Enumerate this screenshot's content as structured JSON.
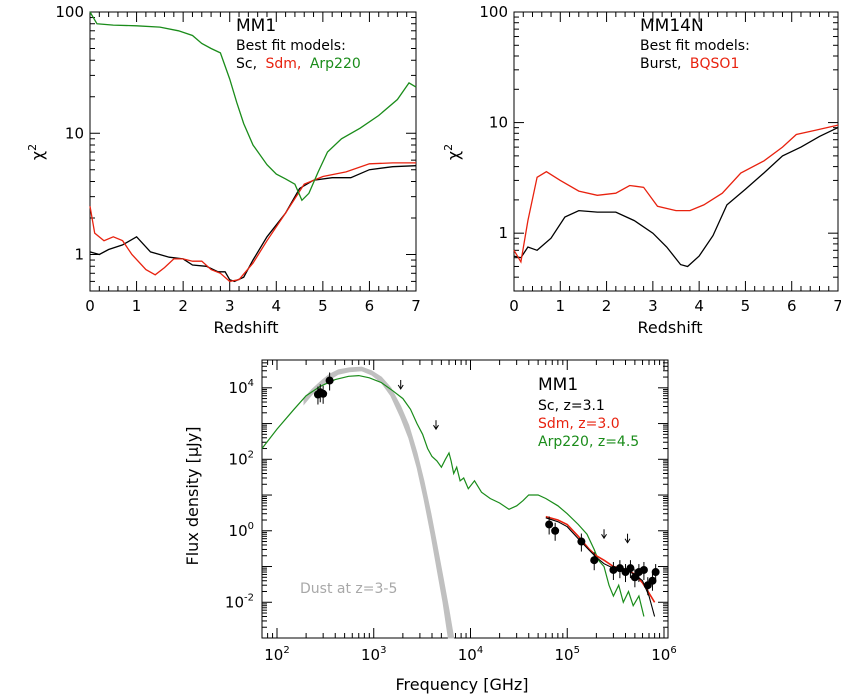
{
  "colors": {
    "black": "#000000",
    "red": "#e8220f",
    "green": "#1a8c1a",
    "gray": "#c0c0c0"
  },
  "chart_data": [
    {
      "type": "line",
      "ylog": true,
      "xlabel": "Redshift",
      "ylabel": "χ",
      "ylabel_sup": "2",
      "xlim": [
        0,
        7
      ],
      "ylim": [
        0.5,
        100
      ],
      "xticks": [
        "0",
        "1",
        "2",
        "3",
        "4",
        "5",
        "6",
        "7"
      ],
      "yticks": [
        {
          "v": 1,
          "t": "1"
        },
        {
          "v": 10,
          "t": "10"
        },
        {
          "v": 100,
          "t": "100"
        }
      ],
      "annotation": {
        "name": "MM1",
        "heading": "Best fit models:",
        "models": [
          {
            "text": "Sc,",
            "color": "black"
          },
          {
            "text": "Sdm,",
            "color": "red"
          },
          {
            "text": "Arp220",
            "color": "green"
          }
        ]
      },
      "series": [
        {
          "color": "black",
          "points": [
            [
              0,
              1.05
            ],
            [
              0.2,
              1.0
            ],
            [
              0.4,
              1.1
            ],
            [
              0.7,
              1.2
            ],
            [
              1.0,
              1.4
            ],
            [
              1.3,
              1.05
            ],
            [
              1.7,
              0.95
            ],
            [
              2.0,
              0.92
            ],
            [
              2.2,
              0.82
            ],
            [
              2.5,
              0.8
            ],
            [
              2.75,
              0.72
            ],
            [
              2.9,
              0.72
            ],
            [
              3.0,
              0.62
            ],
            [
              3.1,
              0.6
            ],
            [
              3.3,
              0.65
            ],
            [
              3.5,
              0.9
            ],
            [
              3.8,
              1.4
            ],
            [
              4.2,
              2.2
            ],
            [
              4.5,
              3.5
            ],
            [
              4.8,
              4.1
            ],
            [
              5.2,
              4.3
            ],
            [
              5.6,
              4.3
            ],
            [
              6.0,
              5.0
            ],
            [
              6.5,
              5.3
            ],
            [
              7.0,
              5.4
            ]
          ]
        },
        {
          "color": "red",
          "points": [
            [
              0,
              2.5
            ],
            [
              0.1,
              1.5
            ],
            [
              0.3,
              1.3
            ],
            [
              0.5,
              1.4
            ],
            [
              0.7,
              1.3
            ],
            [
              0.9,
              1.0
            ],
            [
              1.2,
              0.75
            ],
            [
              1.4,
              0.68
            ],
            [
              1.6,
              0.78
            ],
            [
              1.8,
              0.92
            ],
            [
              2.0,
              0.92
            ],
            [
              2.2,
              0.88
            ],
            [
              2.4,
              0.88
            ],
            [
              2.6,
              0.75
            ],
            [
              2.8,
              0.7
            ],
            [
              3.0,
              0.6
            ],
            [
              3.2,
              0.62
            ],
            [
              3.5,
              0.85
            ],
            [
              3.8,
              1.3
            ],
            [
              4.2,
              2.2
            ],
            [
              4.6,
              3.8
            ],
            [
              5.0,
              4.4
            ],
            [
              5.5,
              4.8
            ],
            [
              6.0,
              5.6
            ],
            [
              6.5,
              5.7
            ],
            [
              7.0,
              5.7
            ]
          ]
        },
        {
          "color": "green",
          "points": [
            [
              0,
              100
            ],
            [
              0.15,
              80
            ],
            [
              0.5,
              78
            ],
            [
              1.0,
              77
            ],
            [
              1.5,
              75
            ],
            [
              1.9,
              70
            ],
            [
              2.2,
              64
            ],
            [
              2.4,
              55
            ],
            [
              2.6,
              50
            ],
            [
              2.8,
              46
            ],
            [
              3.0,
              28
            ],
            [
              3.15,
              18
            ],
            [
              3.3,
              12
            ],
            [
              3.5,
              8
            ],
            [
              3.8,
              5.5
            ],
            [
              4.0,
              4.6
            ],
            [
              4.2,
              4.2
            ],
            [
              4.4,
              3.8
            ],
            [
              4.55,
              2.8
            ],
            [
              4.7,
              3.2
            ],
            [
              4.9,
              4.8
            ],
            [
              5.1,
              7
            ],
            [
              5.4,
              9
            ],
            [
              5.8,
              11
            ],
            [
              6.2,
              14
            ],
            [
              6.6,
              19
            ],
            [
              6.85,
              26
            ],
            [
              7.0,
              24
            ]
          ]
        }
      ]
    },
    {
      "type": "line",
      "ylog": true,
      "xlabel": "Redshift",
      "ylabel": "χ",
      "ylabel_sup": "2",
      "xlim": [
        0,
        7
      ],
      "ylim": [
        0.3,
        100
      ],
      "xticks": [
        "0",
        "1",
        "2",
        "3",
        "4",
        "5",
        "6",
        "7"
      ],
      "yticks": [
        {
          "v": 1,
          "t": "1"
        },
        {
          "v": 10,
          "t": "10"
        },
        {
          "v": 100,
          "t": "100"
        }
      ],
      "annotation": {
        "name": "MM14N",
        "heading": "Best fit models:",
        "models": [
          {
            "text": "Burst,",
            "color": "black"
          },
          {
            "text": "BQSO1",
            "color": "red"
          }
        ]
      },
      "series": [
        {
          "color": "black",
          "points": [
            [
              0,
              0.62
            ],
            [
              0.15,
              0.6
            ],
            [
              0.3,
              0.75
            ],
            [
              0.5,
              0.7
            ],
            [
              0.8,
              0.9
            ],
            [
              1.1,
              1.4
            ],
            [
              1.4,
              1.6
            ],
            [
              1.8,
              1.55
            ],
            [
              2.2,
              1.55
            ],
            [
              2.6,
              1.3
            ],
            [
              3.0,
              1.0
            ],
            [
              3.3,
              0.75
            ],
            [
              3.6,
              0.52
            ],
            [
              3.75,
              0.5
            ],
            [
              4.0,
              0.62
            ],
            [
              4.3,
              0.95
            ],
            [
              4.6,
              1.8
            ],
            [
              5.0,
              2.5
            ],
            [
              5.4,
              3.5
            ],
            [
              5.8,
              5.0
            ],
            [
              6.2,
              6.0
            ],
            [
              6.6,
              7.5
            ],
            [
              7.0,
              9.0
            ]
          ]
        },
        {
          "color": "red",
          "points": [
            [
              0,
              0.7
            ],
            [
              0.15,
              0.55
            ],
            [
              0.3,
              1.3
            ],
            [
              0.5,
              3.2
            ],
            [
              0.7,
              3.6
            ],
            [
              1.0,
              3.0
            ],
            [
              1.4,
              2.4
            ],
            [
              1.8,
              2.2
            ],
            [
              2.2,
              2.3
            ],
            [
              2.5,
              2.7
            ],
            [
              2.8,
              2.6
            ],
            [
              3.1,
              1.75
            ],
            [
              3.5,
              1.6
            ],
            [
              3.8,
              1.6
            ],
            [
              4.1,
              1.8
            ],
            [
              4.5,
              2.3
            ],
            [
              4.9,
              3.5
            ],
            [
              5.4,
              4.5
            ],
            [
              5.8,
              6.0
            ],
            [
              6.1,
              7.8
            ],
            [
              6.5,
              8.5
            ],
            [
              7.0,
              9.5
            ]
          ]
        }
      ]
    },
    {
      "type": "line",
      "xlog": true,
      "ylog": true,
      "xlabel": "Frequency [GHz]",
      "ylabel": "Flux density [μJy]",
      "xlim": [
        70,
        1100000
      ],
      "ylim": [
        0.001,
        60000
      ],
      "xticks": [
        {
          "e": 2,
          "t": "10",
          "s": "2"
        },
        {
          "e": 3,
          "t": "10",
          "s": "3"
        },
        {
          "e": 4,
          "t": "10",
          "s": "4"
        },
        {
          "e": 5,
          "t": "10",
          "s": "5"
        },
        {
          "e": 6,
          "t": "10",
          "s": "6"
        }
      ],
      "yticks": [
        {
          "e": -2,
          "t": "10",
          "s": "-2"
        },
        {
          "e": 0,
          "t": "10",
          "s": "0"
        },
        {
          "e": 2,
          "t": "10",
          "s": "2"
        },
        {
          "e": 4,
          "t": "10",
          "s": "4"
        }
      ],
      "annotation": {
        "name": "MM1",
        "models": [
          {
            "text": "Sc,   z=3.1",
            "color": "black"
          },
          {
            "text": "Sdm, z=3.0",
            "color": "red"
          },
          {
            "text": "Arp220, z=4.5",
            "color": "green"
          }
        ]
      },
      "dust_label": "Dust at z=3-5",
      "dust_band": [
        [
          190,
          5000
        ],
        [
          230,
          9000
        ],
        [
          290,
          16000
        ],
        [
          350,
          24000
        ],
        [
          430,
          32000
        ],
        [
          560,
          36000
        ],
        [
          750,
          38000
        ],
        [
          950,
          30000
        ],
        [
          1200,
          20000
        ],
        [
          1500,
          10000
        ],
        [
          1900,
          3000
        ],
        [
          2300,
          900
        ],
        [
          2800,
          150
        ],
        [
          3300,
          25
        ],
        [
          3900,
          3
        ],
        [
          4500,
          0.4
        ],
        [
          5200,
          0.05
        ],
        [
          6000,
          0.006
        ],
        [
          6700,
          0.001
        ]
      ],
      "dust_band_low": [
        [
          190,
          3500
        ],
        [
          230,
          6500
        ],
        [
          290,
          11000
        ],
        [
          350,
          17000
        ],
        [
          430,
          24000
        ],
        [
          560,
          28000
        ],
        [
          750,
          30000
        ],
        [
          950,
          23000
        ],
        [
          1200,
          14000
        ],
        [
          1500,
          6000
        ],
        [
          1900,
          1500
        ],
        [
          2300,
          400
        ],
        [
          2800,
          60
        ],
        [
          3300,
          8
        ],
        [
          3900,
          0.8
        ],
        [
          4500,
          0.09
        ],
        [
          5200,
          0.01
        ],
        [
          5900,
          0.001
        ]
      ],
      "green_sed": [
        [
          70,
          200
        ],
        [
          100,
          700
        ],
        [
          150,
          2500
        ],
        [
          200,
          6000
        ],
        [
          280,
          11000
        ],
        [
          400,
          17000
        ],
        [
          550,
          21000
        ],
        [
          700,
          22000
        ],
        [
          900,
          19000
        ],
        [
          1200,
          14000
        ],
        [
          1600,
          8000
        ],
        [
          2000,
          5000
        ],
        [
          2400,
          2500
        ],
        [
          2800,
          1000
        ],
        [
          3200,
          500
        ],
        [
          3600,
          200
        ],
        [
          4000,
          120
        ],
        [
          4500,
          90
        ],
        [
          5000,
          60
        ],
        [
          5500,
          100
        ],
        [
          6000,
          150
        ],
        [
          6300,
          90
        ],
        [
          6700,
          40
        ],
        [
          7200,
          60
        ],
        [
          7800,
          25
        ],
        [
          8500,
          30
        ],
        [
          9500,
          15
        ],
        [
          11000,
          25
        ],
        [
          13000,
          12
        ],
        [
          16000,
          8
        ],
        [
          20000,
          6
        ],
        [
          25000,
          4
        ],
        [
          30000,
          5
        ],
        [
          35000,
          7
        ],
        [
          40000,
          10
        ],
        [
          50000,
          10
        ],
        [
          60000,
          8
        ],
        [
          80000,
          5
        ],
        [
          100000,
          3
        ],
        [
          130000,
          1.5
        ],
        [
          160000,
          0.8
        ],
        [
          190000,
          0.3
        ],
        [
          210000,
          0.15
        ],
        [
          240000,
          0.1
        ],
        [
          270000,
          0.03
        ],
        [
          300000,
          0.015
        ],
        [
          340000,
          0.03
        ],
        [
          380000,
          0.01
        ],
        [
          430000,
          0.02
        ],
        [
          480000,
          0.008
        ],
        [
          550000,
          0.015
        ],
        [
          620000,
          0.004
        ]
      ],
      "red_sed": [
        [
          60000,
          2.5
        ],
        [
          80000,
          2.0
        ],
        [
          100000,
          1.5
        ],
        [
          130000,
          0.7
        ],
        [
          170000,
          0.3
        ],
        [
          200000,
          0.2
        ],
        [
          240000,
          0.15
        ],
        [
          300000,
          0.1
        ],
        [
          350000,
          0.09
        ],
        [
          420000,
          0.08
        ],
        [
          500000,
          0.06
        ],
        [
          600000,
          0.035
        ],
        [
          700000,
          0.018
        ],
        [
          800000,
          0.01
        ]
      ],
      "black_sed": [
        [
          60000,
          2.3
        ],
        [
          80000,
          1.8
        ],
        [
          100000,
          1.3
        ],
        [
          130000,
          0.6
        ],
        [
          170000,
          0.28
        ],
        [
          200000,
          0.18
        ],
        [
          240000,
          0.12
        ],
        [
          300000,
          0.09
        ],
        [
          350000,
          0.085
        ],
        [
          420000,
          0.075
        ],
        [
          500000,
          0.06
        ],
        [
          600000,
          0.04
        ],
        [
          700000,
          0.015
        ],
        [
          800000,
          0.004
        ]
      ],
      "points": [
        [
          265,
          6500
        ],
        [
          280,
          7500
        ],
        [
          300,
          6800
        ],
        [
          350,
          16000
        ],
        [
          65000,
          1.5
        ],
        [
          75000,
          1.0
        ],
        [
          140000,
          0.5
        ],
        [
          190000,
          0.15
        ],
        [
          300000,
          0.08
        ],
        [
          350000,
          0.09
        ],
        [
          400000,
          0.07
        ],
        [
          450000,
          0.09
        ],
        [
          500000,
          0.05
        ],
        [
          550000,
          0.07
        ],
        [
          620000,
          0.08
        ],
        [
          680000,
          0.03
        ],
        [
          760000,
          0.04
        ],
        [
          820000,
          0.07
        ]
      ],
      "upper_limits": [
        [
          1900,
          12000
        ],
        [
          4400,
          900
        ],
        [
          240000,
          0.8
        ],
        [
          420000,
          0.6
        ]
      ]
    }
  ]
}
